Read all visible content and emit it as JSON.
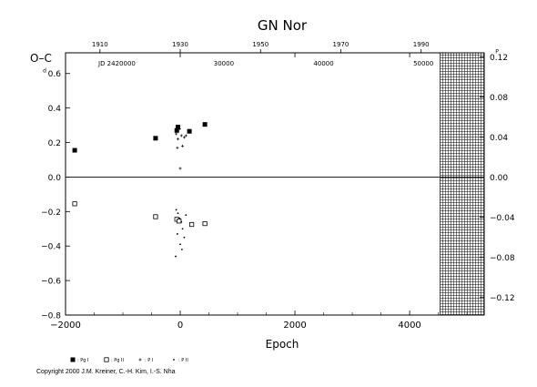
{
  "chart_data": {
    "type": "scatter",
    "title": "GN  Nor",
    "ylabel": "O–C",
    "xlabel": "Epoch",
    "xlim": [
      -2000,
      5300
    ],
    "ylim": [
      -0.8,
      0.72
    ],
    "x_ticks": [
      "−2000",
      "0",
      "2000",
      "4000"
    ],
    "x_tick_values": [
      -2000,
      0,
      2000,
      4000
    ],
    "y_ticks": [
      "−0.8",
      "−0.6",
      "−0.4",
      "−0.2",
      "0.0",
      "0.2",
      "0.4",
      "0.6"
    ],
    "y_tick_values": [
      -0.8,
      -0.6,
      -0.4,
      -0.2,
      0.0,
      0.2,
      0.4,
      0.6
    ],
    "y_tick_first_suffix": "d",
    "right_ticks": [
      "−0.12",
      "−0.08",
      "−0.04",
      "0.00",
      "0.04",
      "0.08",
      "0.12"
    ],
    "right_tick_values": [
      -0.12,
      -0.08,
      -0.04,
      0.0,
      0.04,
      0.08,
      0.12
    ],
    "right_tick_last_suffix": "P",
    "right_scale_factor": 5.8,
    "top_year_ticks": [
      "1910",
      "1930",
      "1950",
      "1970",
      "1990"
    ],
    "top_year_epochs": [
      -1400,
      0,
      1400,
      2800,
      4200
    ],
    "top_jd_ticks": [
      "30000",
      "40000",
      "50000"
    ],
    "top_jd_epochs": [
      760,
      2500,
      4240
    ],
    "jd_label": "JD 2420000",
    "hatched_from_epoch": 4530,
    "zero_line": true,
    "legend": [
      {
        "marker": "filled-square",
        "label": ": Pg I"
      },
      {
        "marker": "open-square",
        "label": ": Pg II"
      },
      {
        "marker": "plus",
        "label": ": P I"
      },
      {
        "marker": "dot",
        "label": ": P II"
      }
    ],
    "series": [
      {
        "name": "Pg I",
        "marker": "filled-square",
        "x": [
          -1840,
          -430,
          -60,
          -40,
          160,
          430
        ],
        "y": [
          0.155,
          0.225,
          0.27,
          0.29,
          0.265,
          0.305
        ]
      },
      {
        "name": "Pg II",
        "marker": "open-square",
        "x": [
          -1840,
          -430,
          -60,
          -20,
          200,
          430
        ],
        "y": [
          -0.155,
          -0.23,
          -0.245,
          -0.255,
          -0.275,
          -0.27
        ]
      },
      {
        "name": "P I",
        "marker": "plus",
        "x": [
          -70,
          -40,
          -10,
          20,
          40,
          70,
          100,
          -50,
          0
        ],
        "y": [
          0.25,
          0.22,
          0.28,
          0.24,
          0.18,
          0.23,
          0.24,
          0.17,
          0.05
        ]
      },
      {
        "name": "P II",
        "marker": "dot",
        "x": [
          -70,
          -40,
          -10,
          20,
          40,
          70,
          100,
          -50,
          0,
          30,
          -80
        ],
        "y": [
          -0.19,
          -0.21,
          -0.24,
          -0.26,
          -0.3,
          -0.35,
          -0.22,
          -0.33,
          -0.39,
          -0.42,
          -0.46
        ]
      }
    ]
  },
  "copyright": "Copyright 2000 J.M. Kreiner, C.-H. Kim, I.-S. Nha"
}
